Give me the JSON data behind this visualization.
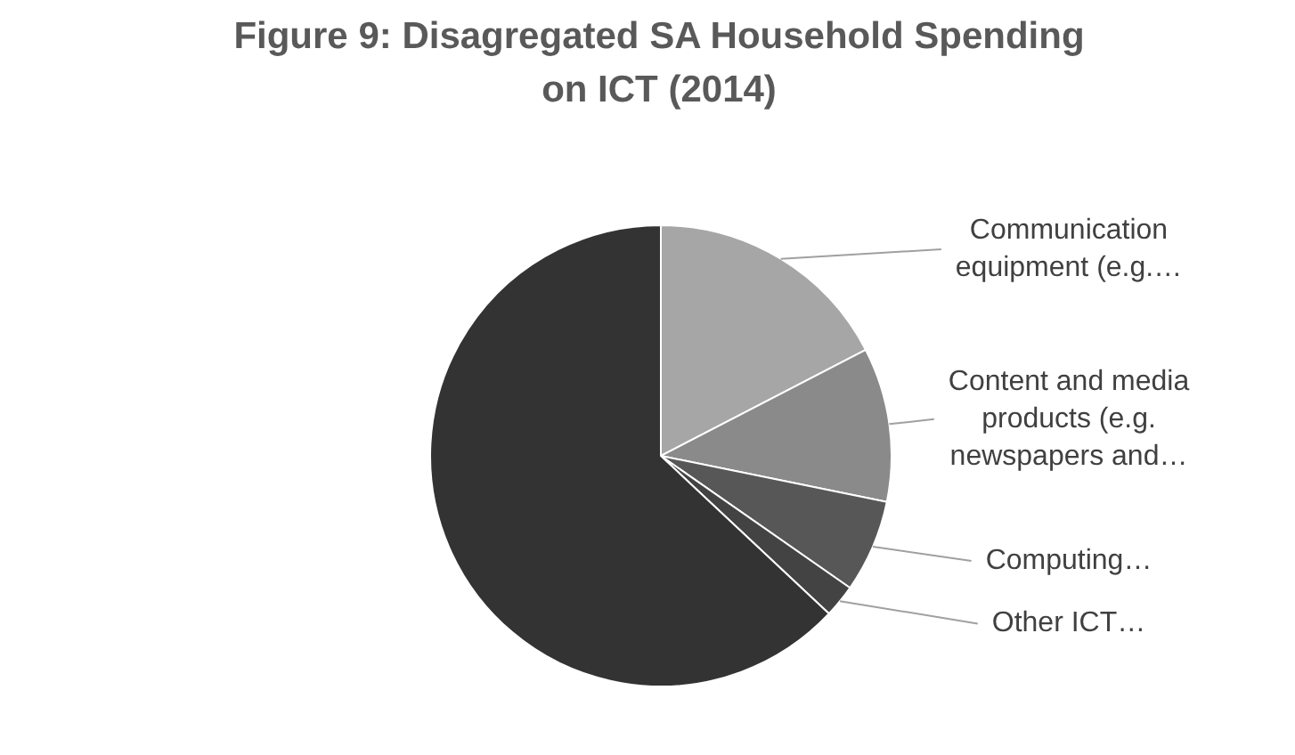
{
  "chart_data": {
    "type": "pie",
    "title": "Figure 9: Disagregated SA Household Spending on ICT (2014)",
    "categories": [
      "Communication equipment (e.g.…",
      "Content and media products (e.g. newspapers and…",
      "Computing…",
      "Other ICT…",
      null
    ],
    "values": [
      17.4,
      10.8,
      6.5,
      2.3,
      63.0
    ],
    "colors": [
      "#a6a6a6",
      "#8a8a8a",
      "#575757",
      "#434343",
      "#333333"
    ],
    "legend": false
  }
}
